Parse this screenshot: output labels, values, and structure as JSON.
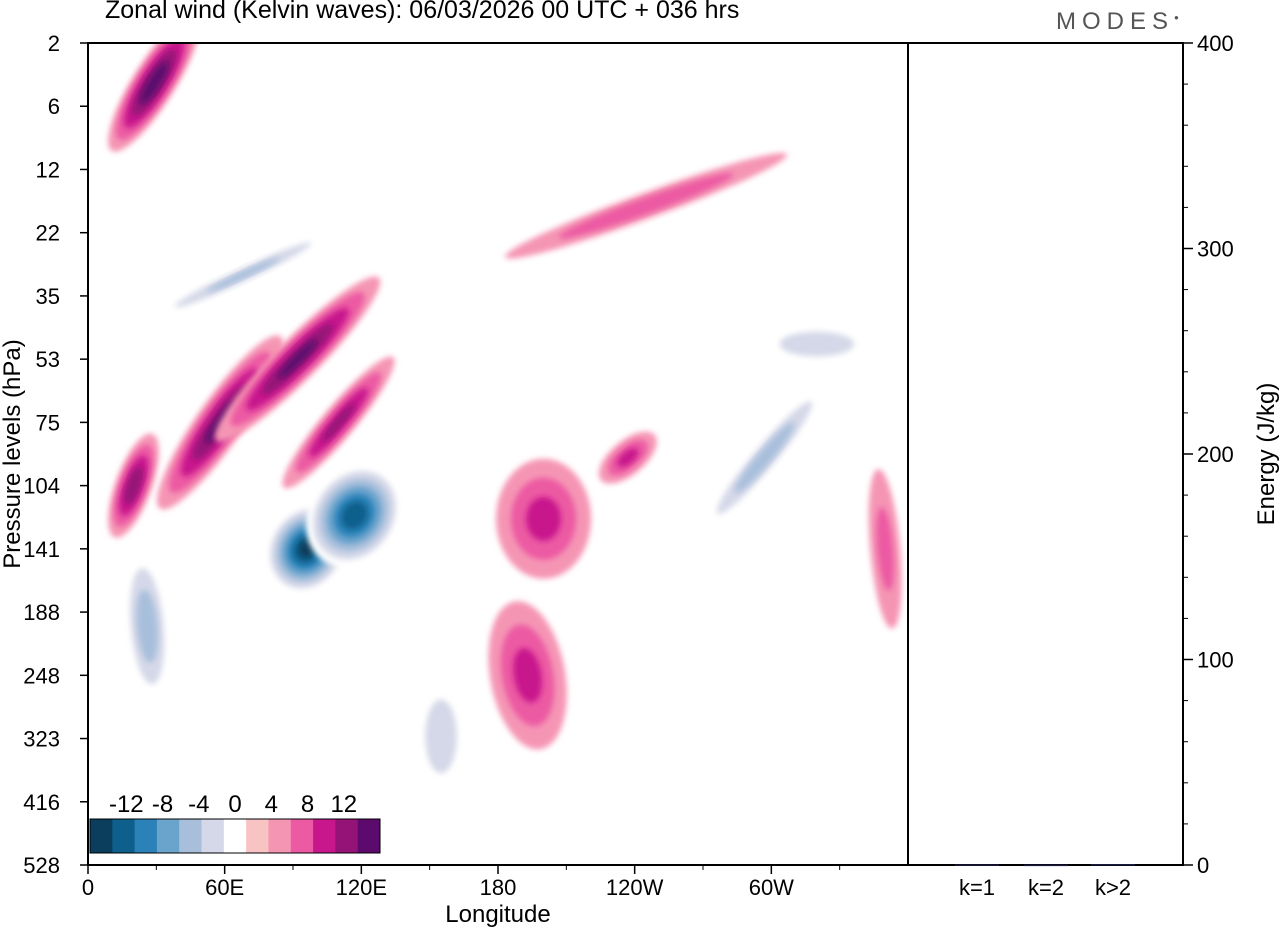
{
  "title": "Zonal wind (Kelvin waves):  06/03/2026  00 UTC  + 036 hrs",
  "logo_text": "MODES",
  "chart_data": [
    {
      "type": "heatmap",
      "xlabel": "Longitude",
      "ylabel": "Pressure levels (hPa)",
      "x_ticks": [
        "0",
        "60E",
        "120E",
        "180",
        "120W",
        "60W"
      ],
      "x_tick_values": [
        0,
        60,
        120,
        180,
        240,
        300
      ],
      "xlim": [
        0,
        360
      ],
      "y_ticks": [
        "2",
        "6",
        "12",
        "22",
        "35",
        "53",
        "75",
        "104",
        "141",
        "188",
        "248",
        "323",
        "416",
        "528"
      ],
      "colorbar": {
        "labels": [
          "-12",
          "-8",
          "-4",
          "0",
          "4",
          "8",
          "12"
        ],
        "levels": [
          -14,
          -12,
          -10,
          -8,
          -6,
          -4,
          -2,
          2,
          4,
          6,
          8,
          10,
          12,
          14
        ],
        "colors": [
          "#0b3d5c",
          "#0f5f8c",
          "#2a82b8",
          "#6aa3cc",
          "#a8bfdc",
          "#d5d8e8",
          "#ffffff",
          "#f7c3c3",
          "#f595b4",
          "#ec5aa3",
          "#c8178d",
          "#951377",
          "#5c0a6e"
        ]
      },
      "features": [
        {
          "sign": "positive",
          "peak": 11,
          "lon": 29,
          "level": "4"
        },
        {
          "sign": "positive",
          "peak": 10,
          "lon": 58,
          "level": "75"
        },
        {
          "sign": "positive",
          "peak": 10,
          "lon": 92,
          "level": "53"
        },
        {
          "sign": "positive",
          "peak": 9,
          "lon": 20,
          "level": "104"
        },
        {
          "sign": "positive",
          "peak": 8,
          "lon": 110,
          "level": "75"
        },
        {
          "sign": "positive",
          "peak": 6,
          "lon": 200,
          "level": "122"
        },
        {
          "sign": "positive",
          "peak": 6,
          "lon": 237,
          "level": "90"
        },
        {
          "sign": "positive",
          "peak": 6,
          "lon": 193,
          "level": "248"
        },
        {
          "sign": "positive",
          "peak": 5,
          "lon": 245,
          "level": "17"
        },
        {
          "sign": "positive",
          "peak": 4,
          "lon": 350,
          "level": "141"
        },
        {
          "sign": "negative",
          "peak": -14,
          "lon": 96,
          "level": "141"
        },
        {
          "sign": "negative",
          "peak": -13,
          "lon": 117,
          "level": "120"
        },
        {
          "sign": "negative",
          "peak": -7,
          "lon": 26,
          "level": "200"
        },
        {
          "sign": "negative",
          "peak": -6,
          "lon": 68,
          "level": "30"
        },
        {
          "sign": "negative",
          "peak": -7,
          "lon": 297,
          "level": "90"
        },
        {
          "sign": "negative",
          "peak": -5,
          "lon": 320,
          "level": "48"
        },
        {
          "sign": "negative",
          "peak": -4,
          "lon": 155,
          "level": "320"
        }
      ]
    },
    {
      "type": "bar",
      "ylabel": "Energy (J/kg)",
      "categories": [
        "k=1",
        "k=2",
        "k>2"
      ],
      "values": [
        0.3,
        0.2,
        0.5
      ],
      "ylim": [
        0,
        400
      ],
      "y_ticks": [
        "0",
        "100",
        "200",
        "300",
        "400"
      ]
    }
  ]
}
